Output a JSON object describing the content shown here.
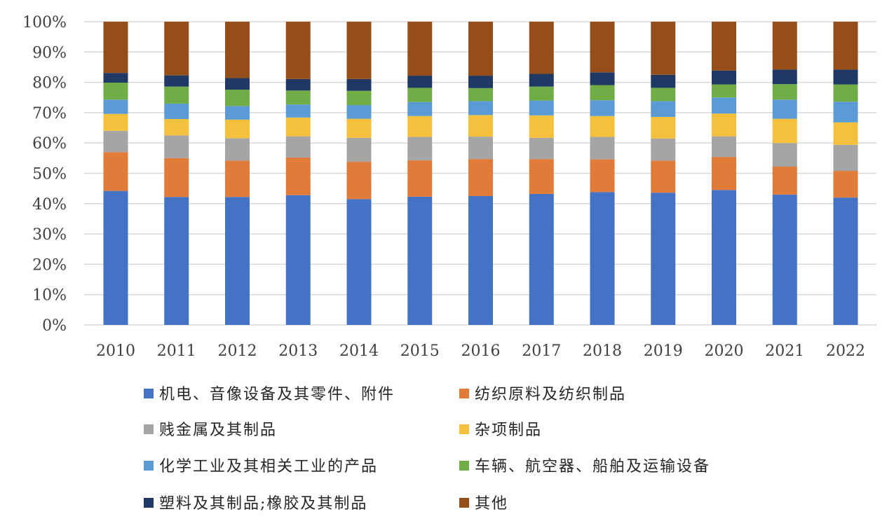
{
  "chart_data": {
    "type": "bar",
    "stacked": true,
    "percent_stacked": true,
    "categories": [
      "2010",
      "2011",
      "2012",
      "2013",
      "2014",
      "2015",
      "2016",
      "2017",
      "2018",
      "2019",
      "2020",
      "2021",
      "2022"
    ],
    "y_ticks": [
      "0%",
      "10%",
      "20%",
      "30%",
      "40%",
      "50%",
      "60%",
      "70%",
      "80%",
      "90%",
      "100%"
    ],
    "ylim": [
      0,
      100
    ],
    "grid": true,
    "legend_position": "bottom",
    "series": [
      {
        "name": "机电、音像设备及其零件、附件",
        "color": "#4472C4",
        "values": [
          44.2,
          42.2,
          42.2,
          42.8,
          41.5,
          42.3,
          42.5,
          43.2,
          43.8,
          43.6,
          44.5,
          43.0,
          42.0
        ]
      },
      {
        "name": "纺织原料及纺织制品",
        "color": "#E07B39",
        "values": [
          12.8,
          12.8,
          12.0,
          12.4,
          12.3,
          12.0,
          12.2,
          11.5,
          10.8,
          10.6,
          10.9,
          9.2,
          8.8
        ]
      },
      {
        "name": "贱金属及其制品",
        "color": "#A5A5A5",
        "values": [
          7.0,
          7.5,
          7.4,
          7.0,
          7.9,
          7.7,
          7.4,
          7.0,
          7.4,
          7.3,
          6.8,
          7.8,
          8.6
        ]
      },
      {
        "name": "杂项制品",
        "color": "#F5C03B",
        "values": [
          5.6,
          5.4,
          6.1,
          6.2,
          6.3,
          6.9,
          7.1,
          7.4,
          6.9,
          7.1,
          7.5,
          8.0,
          7.4
        ]
      },
      {
        "name": "化学工业及其相关工业的产品",
        "color": "#5B9BD5",
        "values": [
          4.7,
          5.1,
          4.5,
          4.3,
          4.5,
          4.6,
          4.6,
          4.9,
          5.2,
          5.2,
          5.3,
          6.3,
          6.8
        ]
      },
      {
        "name": "车辆、航空器、船舶及运输设备",
        "color": "#70AD47",
        "values": [
          5.6,
          5.6,
          5.4,
          4.6,
          4.7,
          4.7,
          4.3,
          4.6,
          5.0,
          4.4,
          4.3,
          5.1,
          5.7
        ]
      },
      {
        "name": "塑料及其制品;橡胶及其制品",
        "color": "#203864",
        "values": [
          3.2,
          3.7,
          3.8,
          3.8,
          3.9,
          4.0,
          4.1,
          4.2,
          4.2,
          4.3,
          4.6,
          4.8,
          4.9
        ]
      },
      {
        "name": "其他",
        "color": "#954E19",
        "values": [
          16.9,
          17.7,
          18.6,
          18.9,
          18.9,
          17.8,
          17.8,
          17.2,
          16.7,
          17.5,
          16.1,
          15.8,
          15.8
        ]
      }
    ]
  }
}
